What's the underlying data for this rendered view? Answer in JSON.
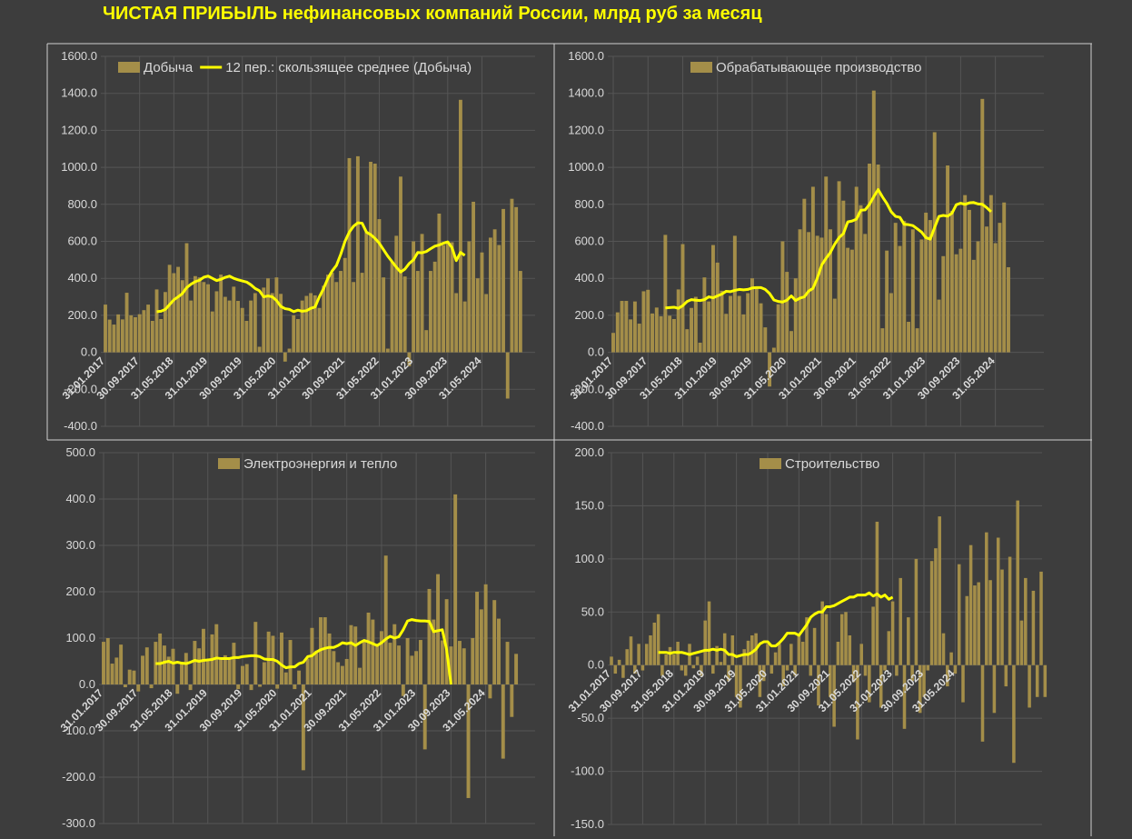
{
  "title": "ЧИСТАЯ ПРИБЫЛЬ нефинансовых компаний России, млрд руб за месяц",
  "colors": {
    "bar": "#a48e49",
    "line": "#ffff00",
    "title": "#ffff00",
    "text": "#d9d9d9",
    "grid": "#555555",
    "frame": "#d0d0d0",
    "background": "#3d3d3d"
  },
  "chart_data": [
    {
      "type": "bar",
      "title": "",
      "series": [
        {
          "name": "Добыча",
          "type": "bar",
          "start": "2017-01",
          "frequency": "monthly",
          "values": [
            258,
            177,
            150,
            205,
            178,
            322,
            200,
            190,
            206,
            228,
            258,
            170,
            340,
            180,
            326,
            473,
            428,
            462,
            390,
            590,
            280,
            412,
            405,
            380,
            368,
            221,
            330,
            420,
            300,
            280,
            355,
            278,
            240,
            170,
            280,
            320,
            30,
            350,
            400,
            320,
            405,
            316,
            -50,
            20,
            200,
            180,
            280,
            305,
            320,
            308,
            240,
            360,
            420,
            430,
            380,
            440,
            510,
            1050,
            380,
            1060,
            430,
            650,
            1030,
            1020,
            720,
            405,
            20,
            490,
            630,
            950,
            410,
            -75,
            600,
            440,
            640,
            120,
            440,
            490,
            750,
            580,
            600,
            595,
            320,
            1365,
            275,
            600,
            814,
            400,
            540,
            315,
            620,
            665,
            580,
            775,
            -250,
            830,
            785,
            440
          ]
        },
        {
          "name": "12 пер.: скользящее среднее (Добыча)",
          "type": "line",
          "start": "2018-01",
          "frequency": "monthly",
          "values": [
            220,
            222,
            232,
            258,
            284,
            300,
            318,
            350,
            368,
            382,
            390,
            406,
            412,
            400,
            388,
            395,
            405,
            412,
            400,
            392,
            386,
            380,
            365,
            345,
            333,
            300,
            305,
            300,
            280,
            248,
            236,
            232,
            220,
            228,
            222,
            225,
            238,
            245,
            300,
            345,
            400,
            440,
            470,
            530,
            600,
            650,
            682,
            700,
            698,
            650,
            636,
            616,
            590,
            555,
            520,
            490,
            460,
            434,
            450,
            480,
            500,
            540,
            538,
            545,
            560,
            574,
            580,
            590,
            597,
            566,
            496,
            540,
            524
          ]
        }
      ],
      "ylim": [
        -400,
        1600
      ],
      "yticks": [
        "1600.0",
        "1400.0",
        "1200.0",
        "1000.0",
        "800.0",
        "600.0",
        "400.0",
        "200.0",
        "0.0",
        "-200.0",
        "-400.0"
      ],
      "xticks": [
        "31.01.2017",
        "30.09.2017",
        "31.05.2018",
        "31.01.2019",
        "30.09.2019",
        "31.05.2020",
        "31.01.2021",
        "30.09.2021",
        "31.05.2022",
        "31.01.2023",
        "30.09.2023",
        "31.05.2024"
      ],
      "legend": "top",
      "grid": true
    },
    {
      "type": "bar",
      "title": "",
      "series": [
        {
          "name": "Обрабатывающее производство",
          "type": "bar",
          "start": "2017-01",
          "frequency": "monthly",
          "values": [
            105,
            216,
            278,
            278,
            178,
            275,
            155,
            330,
            338,
            210,
            242,
            195,
            635,
            198,
            180,
            340,
            585,
            125,
            240,
            300,
            52,
            405,
            275,
            580,
            485,
            333,
            208,
            305,
            630,
            305,
            205,
            320,
            400,
            345,
            265,
            135,
            -185,
            25,
            260,
            600,
            435,
            115,
            400,
            665,
            830,
            650,
            895,
            630,
            620,
            950,
            665,
            290,
            925,
            820,
            565,
            555,
            895,
            795,
            640,
            1020,
            1415,
            1015,
            130,
            550,
            320,
            700,
            575,
            710,
            165,
            665,
            130,
            610,
            755,
            715,
            1190,
            285,
            520,
            1010,
            765,
            530,
            560,
            850,
            770,
            500,
            600,
            1370,
            680,
            850,
            590,
            700,
            810,
            460
          ]
        },
        {
          "name": "",
          "type": "line",
          "start": "2018-01",
          "frequency": "monthly",
          "values": [
            240,
            242,
            244,
            238,
            252,
            275,
            285,
            282,
            280,
            285,
            300,
            295,
            305,
            315,
            330,
            328,
            335,
            340,
            338,
            340,
            348,
            350,
            350,
            340,
            318,
            283,
            275,
            272,
            282,
            305,
            280,
            293,
            300,
            331,
            346,
            402,
            472,
            508,
            540,
            585,
            620,
            642,
            705,
            710,
            720,
            768,
            770,
            800,
            842,
            880,
            840,
            805,
            760,
            735,
            730,
            692,
            690,
            685,
            668,
            650,
            620,
            612,
            675,
            735,
            740,
            736,
            752,
            798,
            806,
            800,
            808,
            810,
            802,
            800,
            782,
            760
          ]
        }
      ],
      "ylim": [
        -400,
        1600
      ],
      "yticks": [
        "1600.0",
        "1400.0",
        "1200.0",
        "1000.0",
        "800.0",
        "600.0",
        "400.0",
        "200.0",
        "0.0",
        "-200.0",
        "-400.0"
      ],
      "xticks": [
        "31.01.2017",
        "30.09.2017",
        "31.05.2018",
        "31.01.2019",
        "30.09.2019",
        "31.05.2020",
        "31.01.2021",
        "30.09.2021",
        "31.05.2022",
        "31.01.2023",
        "30.09.2023",
        "31.05.2024"
      ],
      "legend": "top",
      "grid": true
    },
    {
      "type": "bar",
      "title": "",
      "series": [
        {
          "name": "Электроэнергия и тепло",
          "type": "bar",
          "start": "2017-01",
          "frequency": "monthly",
          "values": [
            92,
            100,
            45,
            58,
            86,
            -6,
            32,
            30,
            -15,
            62,
            80,
            -8,
            92,
            110,
            84,
            60,
            77,
            -20,
            45,
            68,
            -12,
            94,
            78,
            120,
            50,
            108,
            130,
            55,
            63,
            58,
            90,
            -10,
            40,
            44,
            -12,
            135,
            -5,
            48,
            114,
            105,
            -9,
            112,
            26,
            96,
            -10,
            30,
            -185,
            56,
            122,
            73,
            145,
            145,
            110,
            72,
            48,
            40,
            55,
            128,
            125,
            36,
            95,
            155,
            140,
            84,
            115,
            278,
            90,
            130,
            84,
            -25,
            100,
            62,
            72,
            96,
            -140,
            206,
            140,
            238,
            95,
            184,
            82,
            410,
            94,
            78,
            -245,
            100,
            200,
            162,
            216,
            -30,
            182,
            142,
            -160,
            92,
            -70,
            66
          ]
        },
        {
          "name": "",
          "type": "line",
          "start": "2018-01",
          "frequency": "monthly",
          "values": [
            45,
            45,
            48,
            50,
            46,
            48,
            46,
            45,
            48,
            52,
            50,
            52,
            53,
            54,
            57,
            56,
            56,
            56,
            58,
            58,
            60,
            61,
            62,
            62,
            60,
            55,
            54,
            54,
            50,
            42,
            36,
            38,
            38,
            45,
            48,
            60,
            62,
            70,
            75,
            78,
            80,
            80,
            84,
            90,
            88,
            90,
            84,
            90,
            95,
            92,
            88,
            84,
            90,
            98,
            104,
            100,
            103,
            118,
            137,
            140,
            138,
            137,
            137,
            136,
            114,
            116,
            118,
            75,
            0
          ]
        }
      ],
      "ylim": [
        -300,
        500
      ],
      "yticks": [
        "500.0",
        "400.0",
        "300.0",
        "200.0",
        "100.0",
        "0.0",
        "-100.0",
        "-200.0",
        "-300.0"
      ],
      "xticks": [
        "31.01.2017",
        "30.09.2017",
        "31.05.2018",
        "31.01.2019",
        "30.09.2019",
        "31.05.2020",
        "31.01.2021",
        "30.09.2021",
        "31.05.2022",
        "31.01.2023",
        "30.09.2023",
        "31.05.2024"
      ],
      "legend": "top",
      "grid": true
    },
    {
      "type": "bar",
      "title": "",
      "series": [
        {
          "name": "Строительство",
          "type": "bar",
          "start": "2017-01",
          "frequency": "monthly",
          "values": [
            8,
            -8,
            5,
            -12,
            15,
            27,
            -8,
            20,
            -5,
            20,
            28,
            40,
            48,
            -10,
            10,
            17,
            10,
            22,
            -5,
            -10,
            20,
            -3,
            8,
            -10,
            42,
            60,
            -8,
            18,
            3,
            30,
            -15,
            28,
            -30,
            -40,
            15,
            23,
            28,
            30,
            -30,
            -15,
            20,
            -8,
            12,
            20,
            -20,
            -5,
            20,
            -10,
            28,
            22,
            45,
            -10,
            35,
            -38,
            60,
            48,
            -30,
            -58,
            22,
            48,
            50,
            28,
            -16,
            -70,
            20,
            -10,
            -35,
            55,
            135,
            -40,
            -5,
            32,
            60,
            -10,
            82,
            -60,
            45,
            -15,
            100,
            -45,
            -30,
            -5,
            98,
            110,
            140,
            30,
            -20,
            12,
            -8,
            95,
            -35,
            65,
            113,
            75,
            78,
            -72,
            125,
            80,
            -45,
            120,
            90,
            -20,
            102,
            -92,
            155,
            42,
            82,
            -40,
            70,
            -30,
            88,
            -30
          ]
        },
        {
          "name": "",
          "type": "line",
          "start": "2018-01",
          "frequency": "monthly",
          "values": [
            12,
            12,
            12,
            11,
            12,
            12,
            12,
            11,
            10,
            11,
            12,
            13,
            14,
            14,
            15,
            14,
            15,
            14,
            10,
            10,
            8,
            9,
            10,
            10,
            12,
            15,
            20,
            22,
            22,
            18,
            18,
            21,
            25,
            30,
            30,
            30,
            28,
            33,
            38,
            45,
            48,
            50,
            50,
            55,
            55,
            56,
            58,
            60,
            62,
            64,
            64,
            66,
            66,
            66,
            68,
            65,
            67,
            64,
            66,
            62,
            64
          ]
        }
      ],
      "ylim": [
        -150,
        200
      ],
      "yticks": [
        "200.0",
        "150.0",
        "100.0",
        "50.0",
        "0.0",
        "-50.0",
        "-100.0",
        "-150.0"
      ],
      "xticks": [
        "31.01.2017",
        "30.09.2017",
        "31.05.2018",
        "31.01.2019",
        "30.09.2019",
        "31.05.2020",
        "31.01.2021",
        "30.09.2021",
        "31.05.2022",
        "31.01.2023",
        "30.09.2023",
        "31.05.2024"
      ],
      "legend": "top",
      "grid": true
    }
  ]
}
